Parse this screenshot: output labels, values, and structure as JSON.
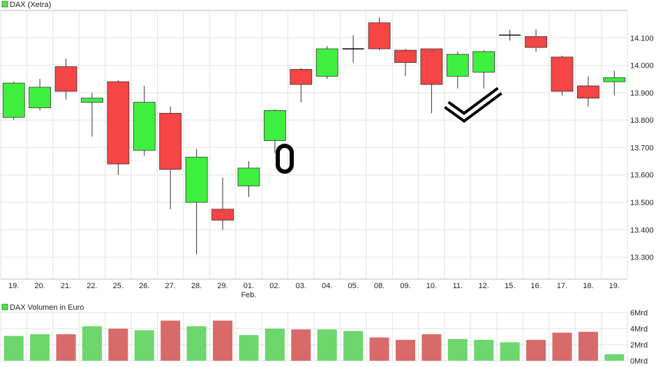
{
  "colors": {
    "up": "#3fef3f",
    "down": "#f54545",
    "vol_up": "#6dd66d",
    "vol_down": "#d96a6a",
    "outline": "#333333"
  },
  "chart_data": [
    {
      "type": "candlestick",
      "title": "DAX (Xetra)",
      "legend_icon": "green-square-icon",
      "categories": [
        "19.",
        "20.",
        "21.",
        "22.",
        "25.",
        "26.",
        "27.",
        "28.",
        "29.",
        "01.",
        "02.",
        "03.",
        "04.",
        "05.",
        "08.",
        "09.",
        "10.",
        "11.",
        "12.",
        "15.",
        "16.",
        "17.",
        "18.",
        "19."
      ],
      "sub_labels": [
        "",
        "",
        "",
        "",
        "",
        "",
        "",
        "",
        "",
        "Feb.",
        "",
        "",
        "",
        "",
        "",
        "",
        "",
        "",
        "",
        "",
        "",
        "",
        "",
        ""
      ],
      "candles": [
        {
          "open": 13810,
          "high": 13940,
          "low": 13800,
          "close": 13935
        },
        {
          "open": 13845,
          "high": 13950,
          "low": 13835,
          "close": 13920
        },
        {
          "open": 13995,
          "high": 14025,
          "low": 13875,
          "close": 13905
        },
        {
          "open": 13865,
          "high": 13900,
          "low": 13740,
          "close": 13880
        },
        {
          "open": 13940,
          "high": 13945,
          "low": 13600,
          "close": 13640
        },
        {
          "open": 13690,
          "high": 13925,
          "low": 13670,
          "close": 13865
        },
        {
          "open": 13825,
          "high": 13850,
          "low": 13475,
          "close": 13620
        },
        {
          "open": 13500,
          "high": 13695,
          "low": 13310,
          "close": 13665
        },
        {
          "open": 13475,
          "high": 13590,
          "low": 13400,
          "close": 13435
        },
        {
          "open": 13560,
          "high": 13650,
          "low": 13520,
          "close": 13625
        },
        {
          "open": 13725,
          "high": 13840,
          "low": 13680,
          "close": 13835
        },
        {
          "open": 13985,
          "high": 13990,
          "low": 13865,
          "close": 13930
        },
        {
          "open": 13960,
          "high": 14070,
          "low": 13950,
          "close": 14060
        },
        {
          "open": 14060,
          "high": 14110,
          "low": 14010,
          "close": 14060
        },
        {
          "open": 14155,
          "high": 14175,
          "low": 14055,
          "close": 14060
        },
        {
          "open": 14055,
          "high": 14060,
          "low": 13960,
          "close": 14010
        },
        {
          "open": 14060,
          "high": 14060,
          "low": 13825,
          "close": 13930
        },
        {
          "open": 13960,
          "high": 14050,
          "low": 13915,
          "close": 14040
        },
        {
          "open": 13975,
          "high": 14055,
          "low": 13915,
          "close": 14050
        },
        {
          "open": 14110,
          "high": 14130,
          "low": 14090,
          "close": 14110
        },
        {
          "open": 14105,
          "high": 14130,
          "low": 14050,
          "close": 14065
        },
        {
          "open": 14030,
          "high": 14035,
          "low": 13890,
          "close": 13905
        },
        {
          "open": 13925,
          "high": 13960,
          "low": 13850,
          "close": 13880
        },
        {
          "open": 13940,
          "high": 13980,
          "low": 13890,
          "close": 13955
        }
      ],
      "ylim": [
        13220,
        14200
      ],
      "yticks": [
        13300,
        13400,
        13500,
        13600,
        13700,
        13800,
        13900,
        14000,
        14100
      ],
      "ytick_labels": [
        "13.300",
        "13.400",
        "13.500",
        "13.600",
        "13.700",
        "13.800",
        "13.900",
        "14.000",
        "14.100"
      ],
      "grid": true
    },
    {
      "type": "bar",
      "title": "DAX Volumen in Euro",
      "legend_icon": "green-square-icon",
      "unit": "Mrd",
      "values": [
        3.1,
        3.3,
        3.3,
        4.3,
        4.0,
        3.8,
        5.0,
        4.3,
        5.0,
        3.2,
        4.0,
        3.9,
        3.9,
        3.7,
        2.9,
        2.6,
        3.3,
        2.7,
        2.6,
        2.3,
        2.6,
        3.5,
        3.6,
        0.8
      ],
      "ylim": [
        0,
        6
      ],
      "yticks": [
        0,
        2,
        4,
        6
      ],
      "ytick_labels": [
        "0Mrd",
        "2Mrd",
        "4Mrd",
        "6Mrd"
      ],
      "grid": true
    }
  ],
  "annotations": [
    {
      "name": "oval-marker-icon",
      "label": "hand-drawn oval"
    },
    {
      "name": "checkmark-icon",
      "label": "hand-drawn checkmark"
    }
  ]
}
